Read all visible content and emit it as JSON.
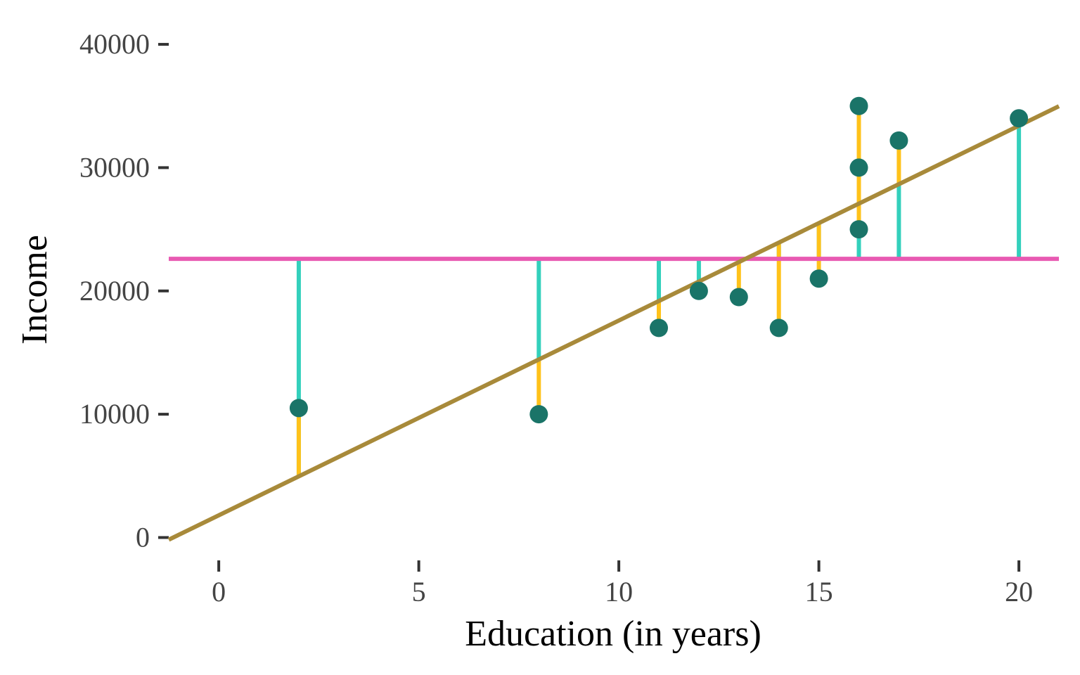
{
  "chart_data": {
    "type": "scatter",
    "title": "",
    "xlabel": "Education (in years)",
    "ylabel": "Income",
    "xlim": [
      -1.25,
      21
    ],
    "ylim": [
      -1000,
      42000
    ],
    "x_ticks": [
      0,
      5,
      10,
      15,
      20
    ],
    "y_ticks": [
      0,
      10000,
      20000,
      30000,
      40000
    ],
    "grid": false,
    "legend": "none",
    "points": [
      {
        "x": 2,
        "y": 10500
      },
      {
        "x": 8,
        "y": 10000
      },
      {
        "x": 11,
        "y": 17000
      },
      {
        "x": 12,
        "y": 20000
      },
      {
        "x": 13,
        "y": 19500
      },
      {
        "x": 14,
        "y": 17000
      },
      {
        "x": 15,
        "y": 21000
      },
      {
        "x": 16,
        "y": 35000
      },
      {
        "x": 16,
        "y": 30000
      },
      {
        "x": 16,
        "y": 25000
      },
      {
        "x": 17,
        "y": 32200
      },
      {
        "x": 20,
        "y": 34000
      }
    ],
    "mean_line": {
      "y": 22600
    },
    "regression_line": {
      "intercept": 1800,
      "slope": 1580
    },
    "colors": {
      "points": "#1a7468",
      "mean_line": "#e85ab2",
      "regression_line": "#a88a3a",
      "residual_to_mean": "#33d0bc",
      "residual_to_fit": "#ffc21a",
      "tick_marks": "#333333"
    }
  }
}
